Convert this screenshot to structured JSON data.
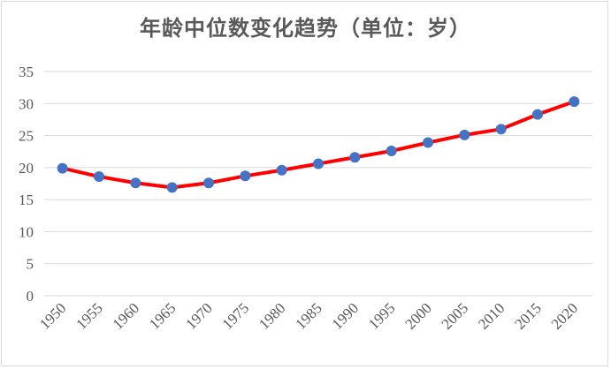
{
  "chart_data": {
    "type": "line",
    "title": "年龄中位数变化趋势（单位：岁）",
    "xlabel": "",
    "ylabel": "",
    "x": [
      "1950",
      "1955",
      "1960",
      "1965",
      "1970",
      "1975",
      "1980",
      "1985",
      "1990",
      "1995",
      "2000",
      "2005",
      "2010",
      "2015",
      "2020"
    ],
    "series": [
      {
        "values": [
          19.9,
          18.6,
          17.6,
          16.9,
          17.6,
          18.7,
          19.6,
          20.6,
          21.6,
          22.6,
          23.9,
          25.1,
          26.0,
          28.3,
          30.3
        ]
      }
    ],
    "ylim": [
      0,
      35
    ],
    "yticks": [
      "0",
      "5",
      "10",
      "15",
      "20",
      "25",
      "30",
      "35"
    ],
    "grid": true,
    "legend": "none"
  },
  "colors": {
    "line": "#ff0000",
    "marker": "#4472c4",
    "grid": "#d9d9d9",
    "text": "#595959"
  }
}
